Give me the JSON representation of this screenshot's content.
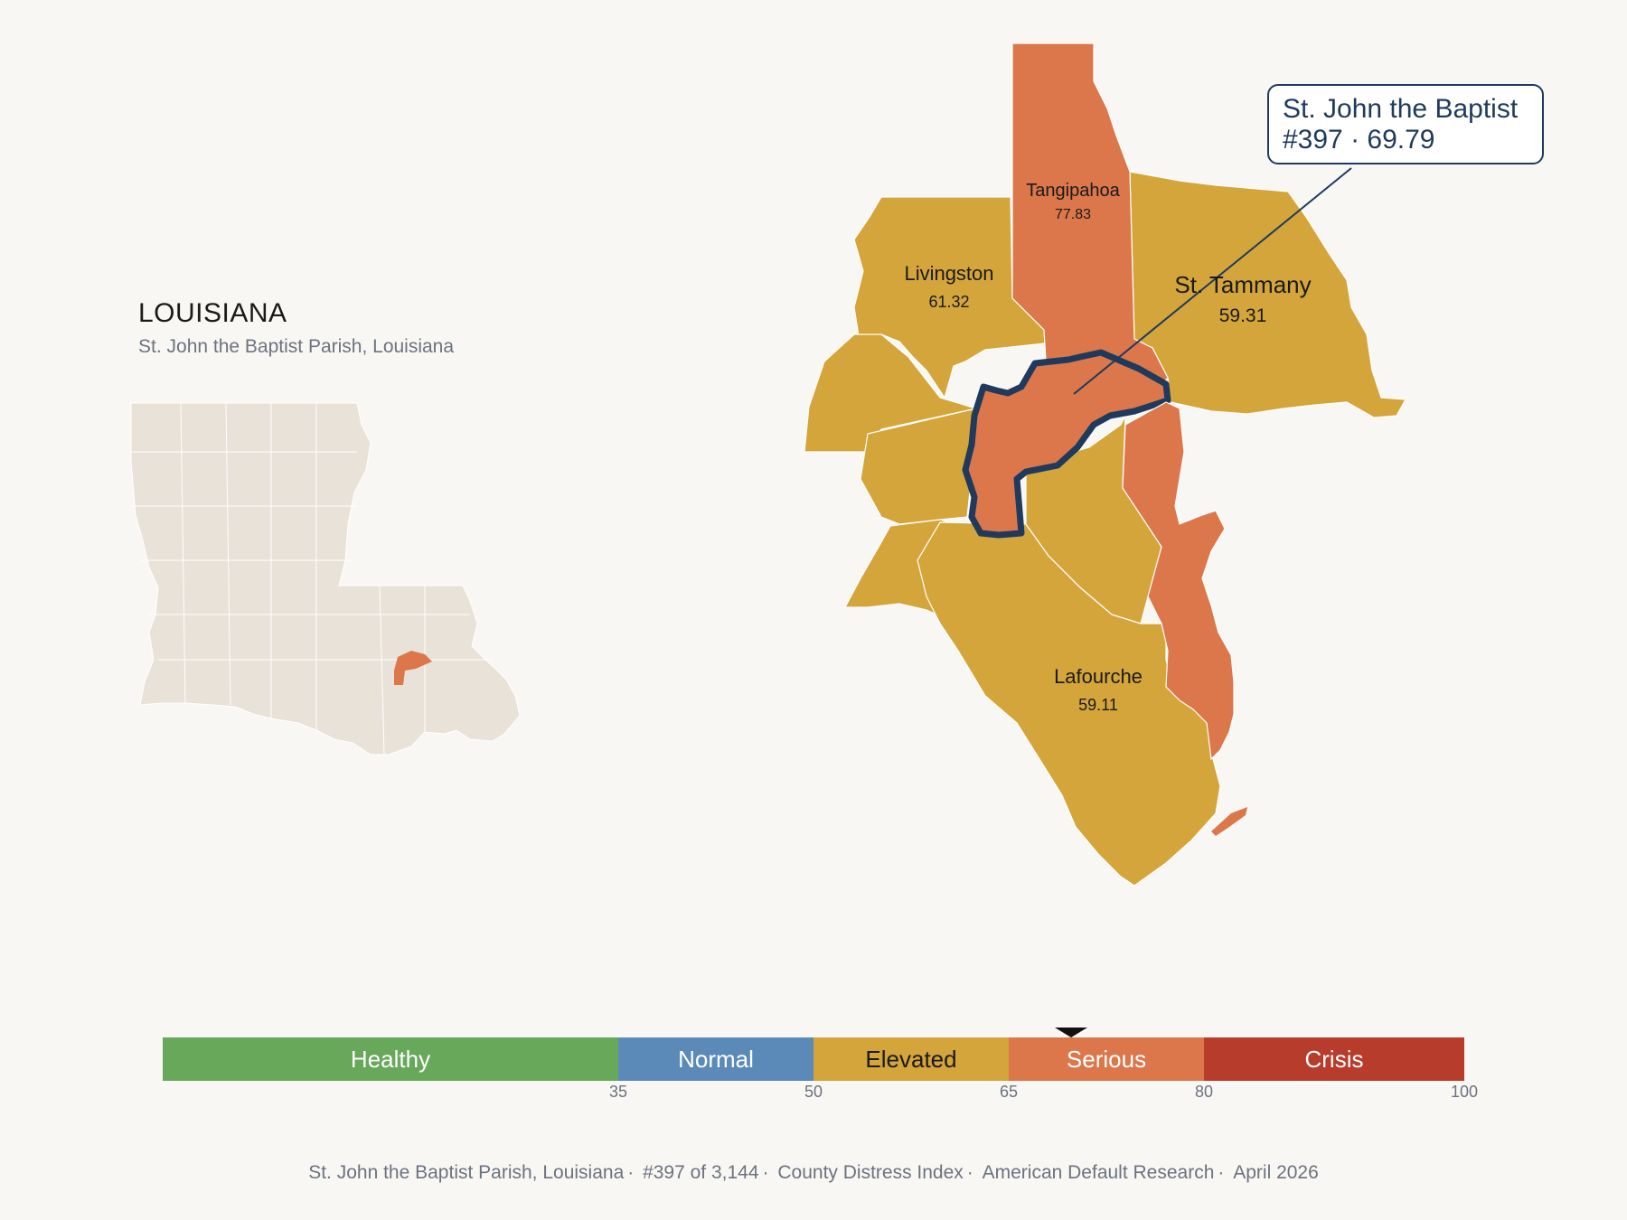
{
  "title": "LOUISIANA",
  "subtitle": "St. John the Baptist Parish, Louisiana",
  "callout": {
    "line1": "St. John the Baptist",
    "line2": "#397 · 69.79"
  },
  "parishes": [
    {
      "name": "Tangipahoa",
      "value": "77.83",
      "category": "Serious"
    },
    {
      "name": "Livingston",
      "value": "61.32",
      "category": "Elevated"
    },
    {
      "name": "St. Tammany",
      "value": "59.31",
      "category": "Elevated"
    },
    {
      "name": "Lafourche",
      "value": "59.11",
      "category": "Elevated"
    }
  ],
  "highlight": {
    "name": "St. John the Baptist",
    "rank": 397,
    "score": 69.79
  },
  "legend": {
    "segments": [
      {
        "label": "Healthy",
        "from": 0,
        "to": 35,
        "color": "#67a85a"
      },
      {
        "label": "Normal",
        "from": 35,
        "to": 50,
        "color": "#5b8ab8"
      },
      {
        "label": "Elevated",
        "from": 50,
        "to": 65,
        "color": "#d4a53a"
      },
      {
        "label": "Serious",
        "from": 65,
        "to": 80,
        "color": "#db774a"
      },
      {
        "label": "Crisis",
        "from": 80,
        "to": 100,
        "color": "#b83c2c"
      }
    ],
    "ticks": [
      "35",
      "50",
      "65",
      "80",
      "100"
    ],
    "marker_value": 69.79
  },
  "colors": {
    "elevated": "#d4a53a",
    "serious": "#db774a",
    "outline": "#1f3a5c",
    "state_fill": "#e8e2d8"
  },
  "footer": [
    "St. John the Baptist Parish, Louisiana",
    "#397 of 3,144",
    "County Distress Index",
    "American Default Research",
    "April 2026"
  ]
}
